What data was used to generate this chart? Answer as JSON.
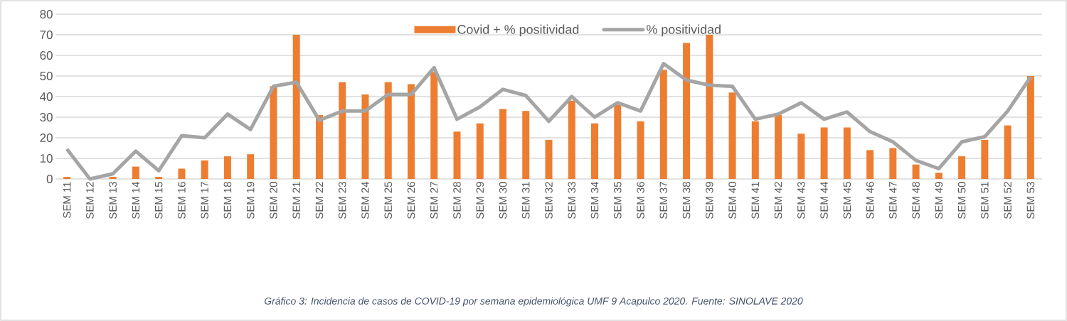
{
  "chart_data": {
    "type": "bar",
    "categories": [
      "SEM 11",
      "SEM 12",
      "SEM 13",
      "SEM 14",
      "SEM 15",
      "SEM 16",
      "SEM 17",
      "SEM 18",
      "SEM 19",
      "SEM 20",
      "SEM 21",
      "SEM 22",
      "SEM 23",
      "SEM 24",
      "SEM 25",
      "SEM 26",
      "SEM 27",
      "SEM 28",
      "SEM 29",
      "SEM 30",
      "SEM 31",
      "SEM 32",
      "SEM 33",
      "SEM 34",
      "SEM 35",
      "SEM 36",
      "SEM 37",
      "SEM 38",
      "SEM 39",
      "SEM 40",
      "SEM 41",
      "SEM 42",
      "SEM 43",
      "SEM 44",
      "SEM 45",
      "SEM 46",
      "SEM 47",
      "SEM 48",
      "SEM 49",
      "SEM 50",
      "SEM 51",
      "SEM 52",
      "SEM 53"
    ],
    "series": [
      {
        "name": "Covid + % positividad",
        "type": "bar",
        "color": "#ed7d31",
        "values": [
          1,
          0,
          1,
          6,
          1,
          5,
          9,
          11,
          12,
          45,
          70,
          31,
          47,
          41,
          47,
          46,
          52,
          23,
          27,
          34,
          33,
          19,
          38,
          27,
          36,
          28,
          53,
          66,
          70,
          42,
          28,
          31,
          22,
          25,
          25,
          14,
          15,
          7,
          3,
          11,
          19,
          26,
          50
        ]
      },
      {
        "name": "% positividad",
        "type": "line",
        "color": "#a5a5a5",
        "values": [
          14.5,
          0,
          2.5,
          13.5,
          4,
          21,
          20,
          31.5,
          24,
          45,
          47,
          28.5,
          33,
          33,
          41,
          41,
          54,
          29,
          35,
          43.5,
          40.5,
          28,
          40,
          30,
          37,
          33,
          56,
          48,
          45.5,
          45,
          29,
          31.5,
          37,
          29,
          32.5,
          23,
          18,
          9,
          5,
          18,
          20.5,
          33,
          49.5
        ]
      }
    ],
    "ylim": [
      0,
      80
    ],
    "yticks": [
      0,
      10,
      20,
      30,
      40,
      50,
      60,
      70,
      80
    ],
    "grid": "y",
    "legend": "top",
    "marker": "none",
    "line_style": "solid",
    "annotations": [
      "Gráfico 3: Incidencia de casos de COVID-19 por semana epidemiológica UMF 9 Acapulco 2020. Fuente: SINOLAVE 2020"
    ]
  }
}
